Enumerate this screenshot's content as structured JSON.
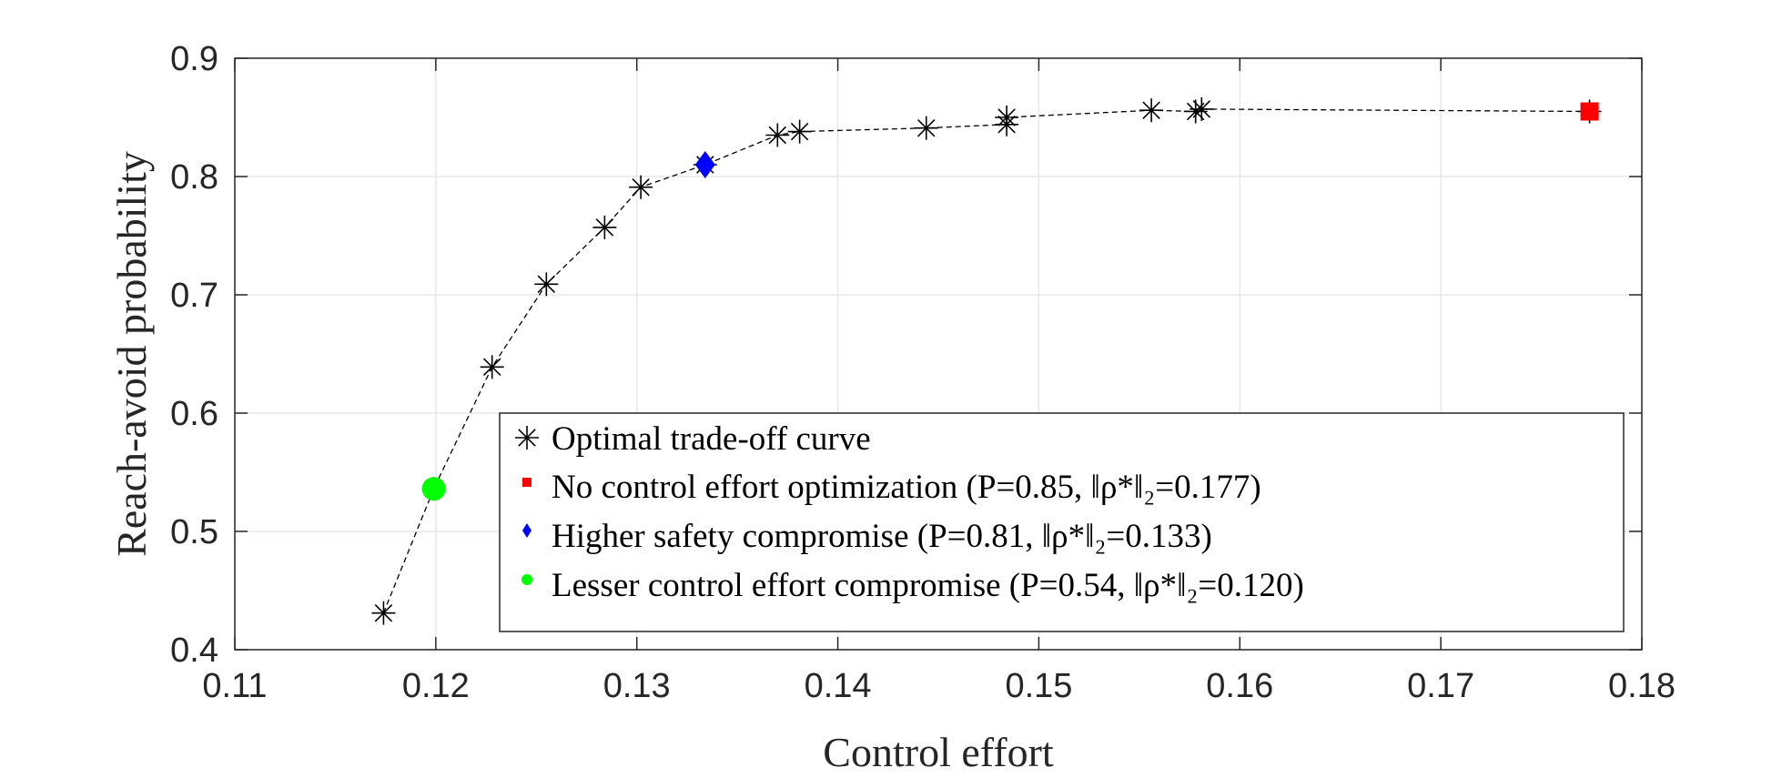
{
  "chart_data": {
    "type": "line",
    "xlabel": "Control effort",
    "ylabel": "Reach-avoid probability",
    "xlim": [
      0.11,
      0.18
    ],
    "ylim": [
      0.4,
      0.9
    ],
    "xticks": [
      0.11,
      0.12,
      0.13,
      0.14,
      0.15,
      0.16,
      0.17,
      0.18
    ],
    "xtick_labels": [
      "0.11",
      "0.12",
      "0.13",
      "0.14",
      "0.15",
      "0.16",
      "0.17",
      "0.18"
    ],
    "yticks": [
      0.4,
      0.5,
      0.6,
      0.7,
      0.8,
      0.9
    ],
    "ytick_labels": [
      "0.4",
      "0.5",
      "0.6",
      "0.7",
      "0.8",
      "0.9"
    ],
    "grid": true,
    "legend_position": "bottom-right",
    "series": [
      {
        "name": "Optimal trade-off curve",
        "marker": "asterisk",
        "line": "dashed",
        "color": "#000000",
        "x": [
          0.1174,
          0.1199,
          0.1228,
          0.1255,
          0.1284,
          0.1302,
          0.1334,
          0.137,
          0.1381,
          0.1444,
          0.1484,
          0.1484,
          0.1556,
          0.1578,
          0.1581,
          0.1774
        ],
        "y": [
          0.431,
          0.536,
          0.639,
          0.709,
          0.757,
          0.791,
          0.81,
          0.835,
          0.838,
          0.841,
          0.844,
          0.85,
          0.856,
          0.855,
          0.857,
          0.855
        ]
      },
      {
        "name": "No control effort optimization",
        "name_suffix": "(P=0.85, ‖ρ*‖₂=0.177)",
        "marker": "square",
        "color": "#ff0000",
        "x": [
          0.1774
        ],
        "y": [
          0.855
        ]
      },
      {
        "name": "Higher safety compromise",
        "name_suffix": "(P=0.81, ‖ρ*‖₂=0.133)",
        "marker": "diamond",
        "color": "#0000ff",
        "x": [
          0.1334
        ],
        "y": [
          0.81
        ]
      },
      {
        "name": "Lesser control effort compromise",
        "name_suffix": "(P=0.54, ‖ρ*‖₂=0.120)",
        "marker": "circle",
        "color": "#00ff00",
        "x": [
          0.1199
        ],
        "y": [
          0.536
        ]
      }
    ]
  }
}
